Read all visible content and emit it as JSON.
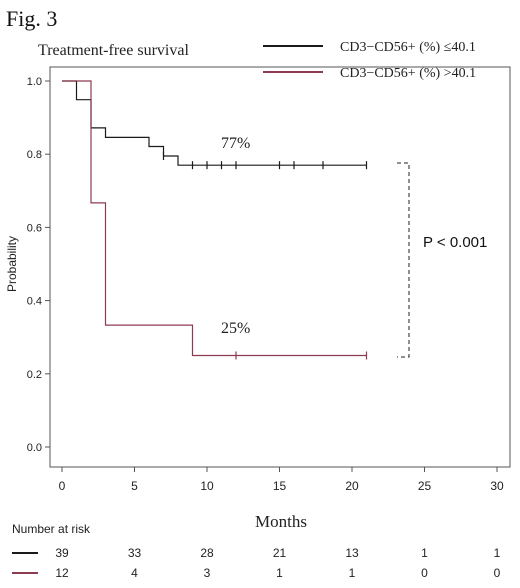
{
  "figure_label": "Fig. 3",
  "pvalue_text": "P < 0.001",
  "risk_table": {
    "title": "Number at risk",
    "times": [
      0,
      5,
      10,
      15,
      20,
      25,
      30
    ],
    "rows": [
      {
        "series_index": 0,
        "values": [
          "39",
          "33",
          "28",
          "21",
          "13",
          "1",
          "1"
        ]
      },
      {
        "series_index": 1,
        "values": [
          "12",
          "4",
          "3",
          "1",
          "1",
          "0",
          "0"
        ]
      }
    ]
  },
  "chart_data": {
    "type": "line",
    "step": "post",
    "title": "Treatment-free survival",
    "xlabel": "Months",
    "ylabel": "Probability",
    "xlim": [
      0,
      30
    ],
    "ylim": [
      0.0,
      1.0
    ],
    "xticks": [
      0,
      5,
      10,
      15,
      20,
      25,
      30
    ],
    "xtick_labels": [
      "0",
      "5",
      "10",
      "15",
      "20",
      "25",
      "30"
    ],
    "yticks": [
      0.0,
      0.2,
      0.4,
      0.6,
      0.8,
      1.0
    ],
    "ytick_labels": [
      "0.0",
      "0.2",
      "0.4",
      "0.6",
      "0.8",
      "1.0"
    ],
    "grid": false,
    "legend_position": "top-right",
    "series": [
      {
        "name": "CD3−CD56+ (%) ≤40.1",
        "color": "#1a1a1a",
        "x": [
          0,
          1,
          2,
          3,
          6,
          7,
          8,
          21
        ],
        "y": [
          1.0,
          0.949,
          0.872,
          0.846,
          0.821,
          0.795,
          0.77,
          0.77
        ],
        "censor_x": [
          7,
          9,
          10,
          11,
          12,
          15,
          16,
          18,
          21
        ],
        "end_label": "77%"
      },
      {
        "name": "CD3−CD56+ (%) >40.1",
        "color": "#8c3b50",
        "x": [
          0,
          2,
          3,
          9,
          21
        ],
        "y": [
          1.0,
          0.667,
          0.333,
          0.25,
          0.25
        ],
        "censor_x": [
          12,
          21
        ],
        "end_label": "25%"
      }
    ]
  }
}
